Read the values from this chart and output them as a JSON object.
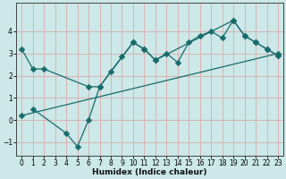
{
  "xlabel": "Humidex (Indice chaleur)",
  "bg_color": "#cce8e8",
  "line_color": "#1a6b6b",
  "xlim": [
    -0.5,
    23.5
  ],
  "ylim": [
    -1.6,
    5.3
  ],
  "yticks": [
    -1,
    0,
    1,
    2,
    3,
    4
  ],
  "xticks": [
    0,
    1,
    2,
    3,
    4,
    5,
    6,
    7,
    8,
    9,
    10,
    11,
    12,
    13,
    14,
    15,
    16,
    17,
    18,
    19,
    20,
    21,
    22,
    23
  ],
  "grid_color": "#dda0a0",
  "markersize": 3.5,
  "line1_x": [
    0,
    1,
    2,
    6,
    7,
    8,
    9,
    10,
    11,
    12,
    13,
    14,
    15,
    16,
    17,
    18,
    19,
    20,
    21,
    22,
    23
  ],
  "line1_y": [
    3.2,
    2.3,
    2.3,
    1.5,
    1.5,
    2.2,
    2.85,
    3.5,
    3.2,
    2.7,
    3.0,
    2.6,
    3.5,
    3.8,
    4.0,
    3.7,
    4.5,
    3.8,
    3.5,
    3.2,
    2.9
  ],
  "line2_x": [
    1,
    4,
    5,
    6,
    7,
    10,
    11,
    12,
    19,
    20,
    21,
    22,
    23
  ],
  "line2_y": [
    0.5,
    -0.6,
    -1.2,
    0.0,
    1.5,
    3.5,
    3.2,
    2.7,
    4.5,
    3.8,
    3.5,
    3.2,
    2.9
  ],
  "line3_x": [
    0,
    23
  ],
  "line3_y": [
    0.2,
    3.0
  ]
}
